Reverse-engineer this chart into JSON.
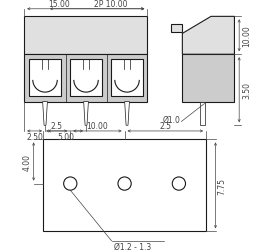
{
  "bg_color": "#ffffff",
  "line_color": "#1a1a1a",
  "dim_color": "#444444",
  "gray_fill": "#cccccc",
  "light_gray": "#e0e0e0",
  "labels": {
    "dim_15": "15.00",
    "dim_2P10": "2P 10.00",
    "dim_250": "2.50",
    "dim_500": "5.00",
    "dim_10sv": "10.00",
    "dim_350": "3.50",
    "dim_d10": "Ø1.0",
    "dim_25a": "2.5",
    "dim_1000": "10.00",
    "dim_25b": "2.5",
    "dim_400": "4.00",
    "dim_775": "7.75",
    "dim_d12": "Ø1.2 - 1.3"
  }
}
